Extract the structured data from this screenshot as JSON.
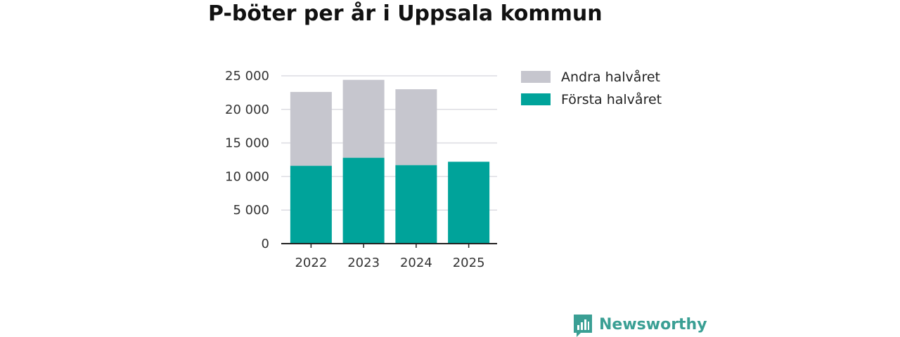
{
  "chart_data": {
    "type": "bar",
    "stacked": true,
    "title": "P-böter per år i Uppsala kommun",
    "xlabel": "",
    "ylabel": "",
    "categories": [
      "2022",
      "2023",
      "2024",
      "2025"
    ],
    "series": [
      {
        "name": "Första halvåret",
        "values": [
          11600,
          12800,
          11700,
          12200
        ],
        "color": "#00a39a"
      },
      {
        "name": "Andra halvåret",
        "values": [
          11000,
          11600,
          11300,
          null
        ],
        "color": "#c6c6ce"
      }
    ],
    "ylim": [
      0,
      25000
    ],
    "yticks": [
      0,
      5000,
      10000,
      15000,
      20000,
      25000
    ],
    "ytick_labels": [
      "0",
      "5 000",
      "10 000",
      "15 000",
      "20 000",
      "25 000"
    ],
    "grid": true,
    "legend_placement": "right",
    "legend_order": [
      "Andra halvåret",
      "Första halvåret"
    ]
  },
  "branding": {
    "logo_text": "Newsworthy",
    "logo_icon": "bar-chart-speech-bubble-icon",
    "color": "#3a9f94"
  }
}
